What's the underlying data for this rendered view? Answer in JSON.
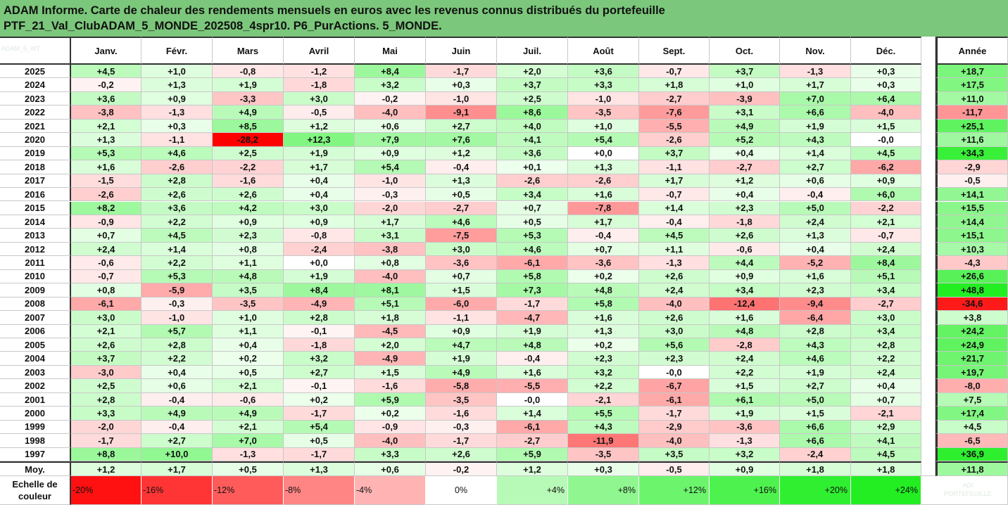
{
  "title": {
    "line1": "ADAM Informe. Carte de chaleur des rendements mensuels en euros avec les revenus connus distribués du portefeuille",
    "line2": "PTF_21_Val_ClubADAM_5_MONDE_202508_4spr10. P6_PurActions. 5_MONDE."
  },
  "watermark": "ADAM_5_WT",
  "watermark2": "ADI PORTEFEUILLE",
  "chart_data": {
    "type": "heatmap",
    "columns": [
      "Janv.",
      "Févr.",
      "Mars",
      "Avril",
      "Mai",
      "Juin",
      "Juil.",
      "Août",
      "Sept.",
      "Oct.",
      "Nov.",
      "Déc."
    ],
    "year_label": "Année",
    "rows": [
      {
        "y": "2025",
        "v": [
          4.5,
          1.0,
          -0.8,
          -1.2,
          8.4,
          -1.7,
          2.0,
          3.6,
          -0.7,
          3.7,
          -1.3,
          0.3
        ],
        "year": 18.7
      },
      {
        "y": "2024",
        "v": [
          -0.2,
          1.3,
          1.9,
          -1.8,
          3.2,
          0.3,
          3.7,
          3.3,
          1.8,
          1.0,
          1.7,
          0.3
        ],
        "year": 17.5
      },
      {
        "y": "2023",
        "v": [
          3.6,
          0.9,
          -3.3,
          3.0,
          -0.2,
          -1.0,
          2.5,
          -1.0,
          -2.7,
          -3.9,
          7.0,
          6.4
        ],
        "year": 11.0
      },
      {
        "y": "2022",
        "v": [
          -3.8,
          -1.3,
          4.9,
          -0.5,
          -4.0,
          -9.1,
          8.6,
          -3.5,
          -7.6,
          3.1,
          6.6,
          -4.0
        ],
        "year": -11.7
      },
      {
        "y": "2021",
        "v": [
          2.1,
          0.3,
          8.5,
          1.2,
          0.6,
          2.7,
          4.0,
          1.0,
          -5.5,
          4.9,
          1.9,
          1.5
        ],
        "year": 25.1
      },
      {
        "y": "2020",
        "v": [
          1.3,
          -1.1,
          -28.2,
          12.3,
          7.9,
          7.6,
          4.1,
          5.4,
          -2.6,
          5.2,
          4.3,
          -0.0
        ],
        "year": 11.6
      },
      {
        "y": "2019",
        "v": [
          5.3,
          4.6,
          2.5,
          1.9,
          0.9,
          1.2,
          3.6,
          0.0,
          3.7,
          0.4,
          1.4,
          4.5
        ],
        "year": 34.3
      },
      {
        "y": "2018",
        "v": [
          1.6,
          -2.6,
          -2.2,
          1.7,
          5.4,
          -0.4,
          0.1,
          1.3,
          -1.1,
          -2.7,
          2.7,
          -6.2
        ],
        "year": -2.9
      },
      {
        "y": "2017",
        "v": [
          -1.5,
          2.8,
          -1.6,
          0.4,
          -1.0,
          1.3,
          -2.6,
          -2.6,
          1.7,
          1.2,
          0.6,
          0.9
        ],
        "year": -0.5
      },
      {
        "y": "2016",
        "v": [
          -2.6,
          2.6,
          2.6,
          0.4,
          -0.3,
          0.5,
          3.4,
          1.6,
          -0.7,
          0.4,
          -0.4,
          6.0
        ],
        "year": 14.1
      },
      {
        "y": "2015",
        "v": [
          8.2,
          3.6,
          4.2,
          3.0,
          -2.0,
          -2.7,
          0.7,
          -7.8,
          1.4,
          2.3,
          5.0,
          -2.2
        ],
        "year": 15.5
      },
      {
        "y": "2014",
        "v": [
          -0.9,
          2.2,
          0.9,
          0.9,
          1.7,
          4.6,
          0.5,
          1.7,
          -0.4,
          -1.8,
          2.4,
          2.1
        ],
        "year": 14.4
      },
      {
        "y": "2013",
        "v": [
          0.7,
          4.5,
          2.3,
          -0.8,
          3.1,
          -7.5,
          5.3,
          -0.4,
          4.5,
          2.6,
          1.3,
          -0.7
        ],
        "year": 15.1
      },
      {
        "y": "2012",
        "v": [
          2.4,
          1.4,
          0.8,
          -2.4,
          -3.8,
          3.0,
          4.6,
          0.7,
          1.1,
          -0.6,
          0.4,
          2.4
        ],
        "year": 10.3
      },
      {
        "y": "2011",
        "v": [
          -0.6,
          2.2,
          1.1,
          0.0,
          0.8,
          -3.6,
          -6.1,
          -3.6,
          -1.3,
          4.4,
          -5.2,
          8.4
        ],
        "year": -4.3
      },
      {
        "y": "2010",
        "v": [
          -0.7,
          5.3,
          4.8,
          1.9,
          -4.0,
          0.7,
          5.8,
          0.2,
          2.6,
          0.9,
          1.6,
          5.1
        ],
        "year": 26.6
      },
      {
        "y": "2009",
        "v": [
          0.8,
          -5.9,
          3.5,
          8.4,
          8.1,
          1.5,
          7.3,
          4.8,
          2.4,
          3.4,
          2.3,
          3.4
        ],
        "year": 48.8
      },
      {
        "y": "2008",
        "v": [
          -6.1,
          -0.3,
          -3.5,
          -4.9,
          5.1,
          -6.0,
          -1.7,
          5.8,
          -4.0,
          -12.4,
          -9.4,
          -2.7
        ],
        "year": -34.6
      },
      {
        "y": "2007",
        "v": [
          3.0,
          -1.0,
          1.0,
          2.8,
          1.8,
          -1.1,
          -4.7,
          1.6,
          2.6,
          1.6,
          -6.4,
          3.0
        ],
        "year": 3.8
      },
      {
        "y": "2006",
        "v": [
          2.1,
          5.7,
          1.1,
          -0.1,
          -4.5,
          0.9,
          1.9,
          1.3,
          3.0,
          4.8,
          2.8,
          3.4
        ],
        "year": 24.2
      },
      {
        "y": "2005",
        "v": [
          2.6,
          2.8,
          0.4,
          -1.8,
          2.0,
          4.7,
          4.8,
          0.2,
          5.6,
          -2.8,
          4.3,
          2.8
        ],
        "year": 24.9
      },
      {
        "y": "2004",
        "v": [
          3.7,
          2.2,
          0.2,
          3.2,
          -4.9,
          1.9,
          -0.4,
          2.3,
          2.3,
          2.4,
          4.6,
          2.2
        ],
        "year": 21.7
      },
      {
        "y": "2003",
        "v": [
          -3.0,
          0.4,
          0.5,
          2.7,
          1.5,
          4.9,
          1.6,
          3.2,
          -0.0,
          2.2,
          1.9,
          2.4
        ],
        "year": 19.7
      },
      {
        "y": "2002",
        "v": [
          2.5,
          0.6,
          2.1,
          -0.1,
          -1.6,
          -5.8,
          -5.5,
          2.2,
          -6.7,
          1.5,
          2.7,
          0.4
        ],
        "year": -8.0
      },
      {
        "y": "2001",
        "v": [
          2.8,
          -0.4,
          -0.6,
          0.2,
          5.9,
          -3.5,
          -0.0,
          -2.1,
          -6.1,
          6.1,
          5.0,
          0.7
        ],
        "year": 7.5
      },
      {
        "y": "2000",
        "v": [
          3.3,
          4.9,
          4.9,
          -1.7,
          0.2,
          -1.6,
          1.4,
          5.5,
          -1.7,
          1.9,
          1.5,
          -2.1
        ],
        "year": 17.4
      },
      {
        "y": "1999",
        "v": [
          -2.0,
          -0.4,
          2.1,
          5.4,
          -0.9,
          -0.3,
          -6.1,
          4.3,
          -2.9,
          -3.6,
          6.6,
          2.9
        ],
        "year": 4.5
      },
      {
        "y": "1998",
        "v": [
          -1.7,
          2.7,
          7.0,
          0.5,
          -4.0,
          -1.7,
          -2.7,
          -11.9,
          -4.0,
          -1.3,
          6.6,
          4.1
        ],
        "year": -6.5
      },
      {
        "y": "1997",
        "v": [
          8.8,
          10.0,
          -1.3,
          -1.7,
          3.3,
          2.6,
          5.9,
          -3.5,
          3.5,
          3.2,
          -2.4,
          4.5
        ],
        "year": 36.9
      }
    ],
    "average": {
      "label": "Moy.",
      "v": [
        1.2,
        1.7,
        0.5,
        1.3,
        0.6,
        -0.2,
        1.2,
        0.3,
        -0.5,
        0.9,
        1.8,
        1.8
      ],
      "year": 11.8
    },
    "scale": {
      "label": "Echelle de couleur",
      "values": [
        -20,
        -16,
        -12,
        -8,
        -4,
        0,
        4,
        8,
        12,
        16,
        20,
        24
      ],
      "labels": [
        "-20%",
        "-16%",
        "-12%",
        "-8%",
        "-4%",
        "0%",
        "+4%",
        "+8%",
        "+12%",
        "+16%",
        "+20%",
        "+24%"
      ]
    },
    "colors": {
      "negative_max": "#ff0000",
      "positive_max": "#22ee22",
      "zero": "#ffffff"
    }
  }
}
